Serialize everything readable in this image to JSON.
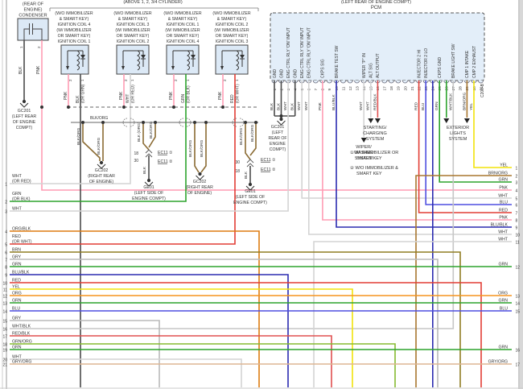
{
  "diagram": {
    "top_note": "(ABOVE 1, 2, 3/4 CYLINDER)",
    "condenser": {
      "title": [
        "(REAR OF",
        "ENGINE)",
        "CONDENSER"
      ],
      "pin1": "1",
      "pin2": "2",
      "wire1": "BLK",
      "wire2": "PNK",
      "ground": [
        "GC201",
        "(LEFT REAR",
        "OF ENGINE",
        "COMPT)"
      ]
    },
    "coils": [
      {
        "title": [
          "(W/O IMMOBILIZER",
          "& SMART KEY)",
          "IGNITION COIL 4",
          "(W/ IMMOBILIZER",
          "OR SMART KEY)",
          "IGNITION COIL 1"
        ],
        "pin_pnk": "PNK",
        "pin_pnk_n": "2",
        "out_color": "BLK",
        "out_alt": "(OR GRN)",
        "out_n": "1"
      },
      {
        "title": [
          "(W/O IMMOBILIZER",
          "& SMART KEY)",
          "IGNITION COIL 3",
          "(W/ IMMOBILIZER",
          "OR SMART KEY)",
          "IGNITION COIL 2"
        ],
        "pin_pnk": "PNK",
        "pin_pnk_n": "2",
        "out_color": "WHT",
        "out_alt": "(OR RED)",
        "out_n": "1"
      },
      {
        "title": [
          "(W/O IMMOBILIZER",
          "& SMART KEY)",
          "IGNITION COIL 1",
          "(W/ IMMOBILIZER",
          "OR SMART KEY)",
          "IGNITION COIL 4"
        ],
        "pin_pnk": "PNK",
        "pin_pnk_n": "2",
        "out_color": "GRN",
        "out_alt": "(OR BLK)",
        "out_n": "1"
      },
      {
        "title": [
          "(W/O IMMOBILIZER",
          "& SMART KEY)",
          "IGNITION COIL 2",
          "(W/ IMMOBILIZER",
          "OR SMART KEY)",
          "IGNITION COIL 3"
        ],
        "pin_pnk": "PNK",
        "pin_pnk_n": "2",
        "out_color": "RED",
        "out_alt": "(OR WHT)",
        "out_n": "1"
      }
    ],
    "bus_label": "BLK/ORG",
    "pcm": {
      "location": "(LEFT REAR OF ENGINE COMPT)",
      "name": "PCM",
      "connector": "C200-B",
      "pins": [
        {
          "n": "1",
          "label": "GND",
          "wire": "BLK"
        },
        {
          "n": "2",
          "label": "GND",
          "wire": "BLK"
        },
        {
          "n": "3",
          "label": "ENG CTRL RLY 'ON' INPUT",
          "wire": "WHT"
        },
        {
          "n": "4",
          "label": "GND",
          "wire": "BLK"
        },
        {
          "n": "5",
          "label": "ENG CTRL RLY 'ON' INPUT",
          "wire": "WHT"
        },
        {
          "n": "6",
          "label": "ENG CTRL RLY 'ON' INPUT",
          "wire": "WHT"
        },
        {
          "n": "7",
          "label": "",
          "wire": ""
        },
        {
          "n": "8",
          "label": "CKPS SIG",
          "wire": "PNK"
        },
        {
          "n": "9",
          "label": "",
          "wire": ""
        },
        {
          "n": "10",
          "label": "BRAKE TEST SW",
          "wire": "BLU/BLK"
        },
        {
          "n": "11",
          "label": "",
          "wire": ""
        },
        {
          "n": "12",
          "label": "",
          "wire": ""
        },
        {
          "n": "13",
          "label": "",
          "wire": ""
        },
        {
          "n": "14",
          "label": "WIPER \"P\" IN",
          "wire": "WHT"
        },
        {
          "n": "15",
          "label": "ALT SIG",
          "wire": "WHT"
        },
        {
          "n": "16",
          "label": "ALT OUTPUT",
          "wire": "RED/BLK"
        },
        {
          "n": "17",
          "label": "",
          "wire": ""
        },
        {
          "n": "18",
          "label": "",
          "wire": ""
        },
        {
          "n": "19",
          "label": "",
          "wire": ""
        },
        {
          "n": "20",
          "label": "",
          "wire": ""
        },
        {
          "n": "21",
          "label": "",
          "wire": ""
        },
        {
          "n": "22",
          "label": "INJECTOR 2 HI",
          "wire": "RED"
        },
        {
          "n": "23",
          "label": "INJECTOR 2 LO",
          "wire": "BLU"
        },
        {
          "n": "24",
          "label": "",
          "wire": ""
        },
        {
          "n": "25",
          "label": "CKPS GND",
          "wire": "GRN"
        },
        {
          "n": "26",
          "label": "",
          "wire": ""
        },
        {
          "n": "27",
          "label": "BRAKE LIGHT SW",
          "wire": "WHT/BLK"
        },
        {
          "n": "28",
          "label": "",
          "wire": ""
        },
        {
          "n": "29",
          "label": "CMP 1 INTAKE",
          "wire": "BRN/ORG"
        },
        {
          "n": "30",
          "label": "CMP 2 EXHAUST",
          "wire": "YEL"
        },
        {
          "n": "31",
          "label": "",
          "wire": ""
        }
      ]
    },
    "grounds": {
      "gc201_pcm": [
        "GC201",
        "(LEFT",
        "REAR OF",
        "ENGINE",
        "COMPT)"
      ],
      "gc202_a": [
        "GC202",
        "(RIGHT REAR",
        "OF ENGINE)"
      ],
      "ge01_a": [
        "GE01",
        "(LEFT SIDE OF",
        "ENGINE COMPT)"
      ],
      "gc202_b": [
        "GC202",
        "(RIGHT REAR",
        "OF ENGINE)"
      ],
      "ge01_b": [
        "GE01",
        "(LEFT SIDE OF",
        "ENGINE COMPT)"
      ]
    },
    "ground_wires": {
      "blk_org": "BLK/ORG",
      "blk_par_org": "BLK (ORG)",
      "blk": "BLK",
      "p18": "18",
      "p30": "30"
    },
    "ec11": {
      "name": "EC11",
      "c1": "①",
      "c2": "②"
    },
    "systems": {
      "starting": [
        "STARTING/",
        "CHARGING",
        "SYSTEM"
      ],
      "wiper": [
        "WIPER/",
        "WASHER",
        "SYSTEM"
      ],
      "exterior": [
        "EXTERIOR",
        "LIGHTS",
        "SYSTEM"
      ]
    },
    "notes": [
      {
        "bullet": "①",
        "line1": "W/ IMMOBILIZER OR",
        "line2": "SMART KEY"
      },
      {
        "bullet": "②",
        "line1": "W/O IMMOBILIZER &",
        "line2": "SMART KEY"
      }
    ],
    "left_edge": [
      {
        "n": "1",
        "lines": [
          "WHT",
          "(OR RED)"
        ]
      },
      {
        "n": "2",
        "lines": [
          "GRN",
          "(OR BLK)"
        ]
      },
      {
        "n": "3",
        "lines": [
          "WHT"
        ]
      },
      {
        "n": "4",
        "lines": [
          "ORG/BLK"
        ]
      },
      {
        "n": "5",
        "lines": [
          "RED",
          "(OR WHT)"
        ]
      },
      {
        "n": "6",
        "lines": [
          "BRN"
        ]
      },
      {
        "n": "7",
        "lines": [
          "GRY"
        ]
      },
      {
        "n": "8",
        "lines": [
          "GRN"
        ]
      },
      {
        "n": "9",
        "lines": [
          "BLU/BLK"
        ]
      },
      {
        "n": "10",
        "lines": [
          "RED"
        ]
      },
      {
        "n": "11",
        "lines": [
          "YEL"
        ]
      },
      {
        "n": "12",
        "lines": [
          "ORG"
        ]
      },
      {
        "n": "13",
        "lines": [
          "GRN"
        ]
      },
      {
        "n": "14",
        "lines": [
          "BLU"
        ]
      },
      {
        "n": "15",
        "lines": [
          "GRY"
        ]
      },
      {
        "n": "16",
        "lines": [
          "WHT/BLK"
        ]
      },
      {
        "n": "17",
        "lines": [
          "RED/BLK"
        ]
      },
      {
        "n": "18",
        "lines": [
          "GRN/ORG"
        ]
      },
      {
        "n": "19",
        "lines": [
          "GRN"
        ]
      },
      {
        "n": "20",
        "lines": [
          "WHT"
        ]
      },
      {
        "n": "21",
        "lines": [
          "GRY/ORG"
        ]
      }
    ],
    "right_edge": [
      {
        "n": "1",
        "lines": [
          "YEL"
        ]
      },
      {
        "n": "2",
        "lines": [
          "BRN/ORG"
        ]
      },
      {
        "n": "3",
        "lines": [
          "GRN"
        ]
      },
      {
        "n": "4",
        "lines": [
          "PNK"
        ]
      },
      {
        "n": "5",
        "lines": [
          "WHT"
        ]
      },
      {
        "n": "6",
        "lines": [
          "BLU"
        ]
      },
      {
        "n": "7",
        "lines": [
          "RED"
        ]
      },
      {
        "n": "8",
        "lines": [
          "PNK"
        ]
      },
      {
        "n": "9",
        "lines": [
          "BLU/BLK"
        ]
      },
      {
        "n": "10",
        "lines": [
          "WHT"
        ]
      },
      {
        "n": "11",
        "lines": [
          "WHT"
        ]
      },
      {
        "n": "12",
        "lines": [
          "GRN"
        ]
      },
      {
        "n": "13",
        "lines": [
          "ORG"
        ]
      },
      {
        "n": "14",
        "lines": [
          "GRN"
        ]
      },
      {
        "n": "15",
        "lines": [
          "BLU"
        ]
      },
      {
        "n": "16",
        "lines": [
          "GRN"
        ]
      },
      {
        "n": "17",
        "lines": [
          "GRY/ORG"
        ]
      }
    ],
    "colors": {
      "BLK": "#4b4b4b",
      "WHT": "#d4d4d4",
      "PNK": "#ff9cb4",
      "RED": "#e23d35",
      "GRN": "#2da32d",
      "BLU": "#4f4fe0",
      "BLU/BLK": "#2b2bb0",
      "YEL": "#f2e30a",
      "ORG": "#f5941e",
      "ORG/BLK": "#de7c12",
      "BRN": "#8f7d22",
      "BRN/ORG": "#a8762e",
      "GRY": "#bababa",
      "WHT/BLK": "#c6c6c6",
      "RED/BLK": "#e05050",
      "GRN/ORG": "#85bb30",
      "GRY/ORG": "#ddb694",
      "BLK/ORG": "#8a6a32",
      "BUS": "#666666",
      "box_fill": "#dce9f6",
      "pcm_fill": "#e3eef9",
      "box_stroke": "#444444"
    }
  }
}
